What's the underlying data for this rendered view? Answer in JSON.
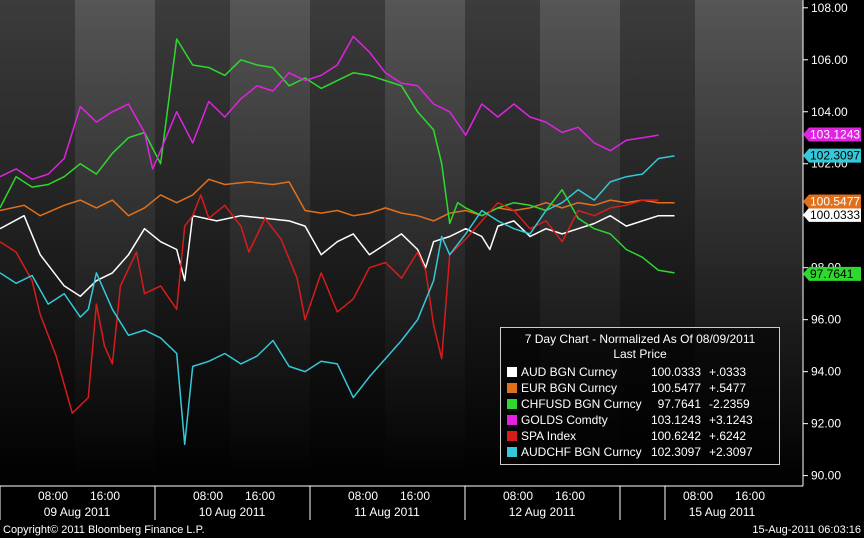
{
  "chart_data": {
    "type": "line",
    "title": "7 Day Chart - Normalized As Of 08/09/2011",
    "subtitle": "Last Price",
    "xlabel": "",
    "ylabel": "",
    "ylim": [
      89.6,
      108.3
    ],
    "y_ticks": [
      "108.00",
      "106.00",
      "104.00",
      "102.00",
      "100.00",
      "98.00",
      "96.00",
      "94.00",
      "92.00",
      "90.00"
    ],
    "grid": false,
    "legend_position": "bottom-right",
    "x_time_labels": [
      "08:00",
      "16:00",
      "08:00",
      "16:00",
      "08:00",
      "16:00",
      "08:00",
      "16:00",
      "08:00",
      "16:00"
    ],
    "x_day_labels": [
      "09 Aug 2011",
      "10 Aug 2011",
      "11 Aug 2011",
      "12 Aug 2011",
      "15 Aug 2011"
    ],
    "x_domain": [
      0,
      100
    ],
    "series": [
      {
        "name": "AUD BGN Curncy",
        "last": "100.0333",
        "change": "+.0333",
        "color": "#ffffff",
        "points": [
          [
            0,
            99.5
          ],
          [
            3,
            100.0
          ],
          [
            5,
            98.5
          ],
          [
            8,
            97.3
          ],
          [
            10,
            96.9
          ],
          [
            12,
            97.5
          ],
          [
            14,
            97.8
          ],
          [
            16,
            98.5
          ],
          [
            18,
            99.5
          ],
          [
            20,
            99.0
          ],
          [
            22,
            98.7
          ],
          [
            23,
            97.5
          ],
          [
            24,
            100.0
          ],
          [
            27,
            99.8
          ],
          [
            30,
            100.0
          ],
          [
            33,
            99.9
          ],
          [
            36,
            99.8
          ],
          [
            38,
            99.6
          ],
          [
            40,
            98.5
          ],
          [
            42,
            99.0
          ],
          [
            44,
            99.3
          ],
          [
            46,
            98.5
          ],
          [
            48,
            98.9
          ],
          [
            50,
            99.3
          ],
          [
            52,
            98.7
          ],
          [
            53,
            98.0
          ],
          [
            54,
            99.0
          ],
          [
            56,
            99.2
          ],
          [
            58,
            99.5
          ],
          [
            60,
            99.2
          ],
          [
            61,
            98.7
          ],
          [
            62,
            99.6
          ],
          [
            64,
            99.8
          ],
          [
            66,
            99.2
          ],
          [
            68,
            99.5
          ],
          [
            70,
            99.3
          ],
          [
            72,
            99.5
          ],
          [
            74,
            99.7
          ],
          [
            76,
            100.0
          ],
          [
            78,
            99.6
          ],
          [
            80,
            99.8
          ],
          [
            82,
            100.0
          ],
          [
            84,
            100.0
          ]
        ]
      },
      {
        "name": "EUR BGN Curncy",
        "last": "100.5477",
        "change": "+.5477",
        "color": "#e0701c",
        "points": [
          [
            0,
            100.2
          ],
          [
            3,
            100.4
          ],
          [
            5,
            100.0
          ],
          [
            8,
            100.4
          ],
          [
            10,
            100.6
          ],
          [
            12,
            100.3
          ],
          [
            14,
            100.6
          ],
          [
            16,
            100.0
          ],
          [
            18,
            100.3
          ],
          [
            20,
            100.8
          ],
          [
            22,
            100.5
          ],
          [
            24,
            100.8
          ],
          [
            26,
            101.4
          ],
          [
            28,
            101.2
          ],
          [
            31,
            101.3
          ],
          [
            34,
            101.2
          ],
          [
            36,
            101.3
          ],
          [
            38,
            100.2
          ],
          [
            40,
            100.1
          ],
          [
            42,
            100.2
          ],
          [
            44,
            100.0
          ],
          [
            46,
            100.1
          ],
          [
            48,
            100.3
          ],
          [
            50,
            100.1
          ],
          [
            52,
            100.0
          ],
          [
            54,
            99.8
          ],
          [
            56,
            100.1
          ],
          [
            58,
            100.2
          ],
          [
            60,
            100.0
          ],
          [
            62,
            100.3
          ],
          [
            64,
            100.2
          ],
          [
            66,
            100.3
          ],
          [
            68,
            100.5
          ],
          [
            70,
            100.3
          ],
          [
            72,
            100.5
          ],
          [
            74,
            100.4
          ],
          [
            76,
            100.6
          ],
          [
            78,
            100.5
          ],
          [
            80,
            100.6
          ],
          [
            82,
            100.5
          ],
          [
            84,
            100.5
          ]
        ]
      },
      {
        "name": "CHFUSD BGN Curncy",
        "last": "97.7641",
        "change": "-2.2359",
        "color": "#2fd82f",
        "points": [
          [
            0,
            100.3
          ],
          [
            2,
            101.5
          ],
          [
            4,
            101.1
          ],
          [
            6,
            101.2
          ],
          [
            8,
            101.5
          ],
          [
            10,
            102.0
          ],
          [
            12,
            101.6
          ],
          [
            14,
            102.4
          ],
          [
            16,
            103.0
          ],
          [
            18,
            103.2
          ],
          [
            20,
            102.0
          ],
          [
            22,
            106.8
          ],
          [
            24,
            105.8
          ],
          [
            26,
            105.7
          ],
          [
            28,
            105.4
          ],
          [
            30,
            106.0
          ],
          [
            32,
            105.8
          ],
          [
            34,
            105.7
          ],
          [
            36,
            105.0
          ],
          [
            38,
            105.3
          ],
          [
            40,
            104.9
          ],
          [
            42,
            105.2
          ],
          [
            44,
            105.5
          ],
          [
            46,
            105.4
          ],
          [
            48,
            105.2
          ],
          [
            50,
            105.0
          ],
          [
            52,
            104.0
          ],
          [
            54,
            103.3
          ],
          [
            55,
            102.0
          ],
          [
            56,
            99.7
          ],
          [
            57,
            100.5
          ],
          [
            58,
            100.3
          ],
          [
            60,
            100.0
          ],
          [
            62,
            100.3
          ],
          [
            64,
            100.5
          ],
          [
            66,
            100.4
          ],
          [
            68,
            100.2
          ],
          [
            70,
            101.0
          ],
          [
            72,
            99.9
          ],
          [
            74,
            99.5
          ],
          [
            76,
            99.3
          ],
          [
            78,
            98.7
          ],
          [
            80,
            98.4
          ],
          [
            82,
            97.9
          ],
          [
            84,
            97.8
          ]
        ]
      },
      {
        "name": "GOLDS Comdty",
        "last": "103.1243",
        "change": "+3.1243",
        "color": "#e023e0",
        "points": [
          [
            0,
            101.5
          ],
          [
            2,
            101.8
          ],
          [
            4,
            101.4
          ],
          [
            6,
            101.6
          ],
          [
            8,
            102.2
          ],
          [
            10,
            104.2
          ],
          [
            12,
            103.6
          ],
          [
            14,
            104.0
          ],
          [
            16,
            104.3
          ],
          [
            18,
            103.2
          ],
          [
            19,
            101.8
          ],
          [
            20,
            102.5
          ],
          [
            22,
            104.0
          ],
          [
            24,
            102.8
          ],
          [
            26,
            104.4
          ],
          [
            28,
            103.8
          ],
          [
            30,
            104.5
          ],
          [
            32,
            105.0
          ],
          [
            34,
            104.8
          ],
          [
            36,
            105.5
          ],
          [
            38,
            105.2
          ],
          [
            40,
            105.4
          ],
          [
            42,
            105.8
          ],
          [
            44,
            106.9
          ],
          [
            46,
            106.3
          ],
          [
            48,
            105.5
          ],
          [
            50,
            105.1
          ],
          [
            52,
            105.0
          ],
          [
            54,
            104.3
          ],
          [
            56,
            104.0
          ],
          [
            58,
            103.1
          ],
          [
            60,
            104.3
          ],
          [
            62,
            103.8
          ],
          [
            64,
            104.3
          ],
          [
            66,
            103.8
          ],
          [
            68,
            103.6
          ],
          [
            70,
            103.2
          ],
          [
            72,
            103.4
          ],
          [
            74,
            102.8
          ],
          [
            76,
            102.5
          ],
          [
            78,
            102.9
          ],
          [
            80,
            103.0
          ],
          [
            82,
            103.1
          ]
        ]
      },
      {
        "name": "SPA Index",
        "last": "100.6242",
        "change": "+.6242",
        "color": "#d81c1c",
        "points": [
          [
            0,
            99.0
          ],
          [
            2,
            98.6
          ],
          [
            4,
            97.5
          ],
          [
            5,
            96.2
          ],
          [
            7,
            94.6
          ],
          [
            9,
            92.4
          ],
          [
            11,
            93.0
          ],
          [
            12,
            96.6
          ],
          [
            13,
            95.0
          ],
          [
            14,
            94.3
          ],
          [
            15,
            97.3
          ],
          [
            17,
            98.6
          ],
          [
            18,
            97.0
          ],
          [
            20,
            97.3
          ],
          [
            22,
            96.4
          ],
          [
            23,
            99.6
          ],
          [
            24,
            100.0
          ],
          [
            25,
            100.8
          ],
          [
            26,
            99.9
          ],
          [
            28,
            100.4
          ],
          [
            30,
            99.6
          ],
          [
            31,
            98.6
          ],
          [
            33,
            99.9
          ],
          [
            35,
            99.1
          ],
          [
            37,
            97.6
          ],
          [
            38,
            96.0
          ],
          [
            40,
            97.8
          ],
          [
            42,
            96.3
          ],
          [
            44,
            96.8
          ],
          [
            46,
            98.0
          ],
          [
            48,
            98.2
          ],
          [
            50,
            97.6
          ],
          [
            52,
            98.6
          ],
          [
            53,
            97.9
          ],
          [
            54,
            95.8
          ],
          [
            55,
            94.5
          ],
          [
            56,
            98.5
          ],
          [
            58,
            99.1
          ],
          [
            60,
            99.8
          ],
          [
            62,
            100.5
          ],
          [
            64,
            100.2
          ],
          [
            66,
            99.5
          ],
          [
            68,
            99.8
          ],
          [
            70,
            99.0
          ],
          [
            72,
            100.2
          ],
          [
            74,
            100.0
          ],
          [
            76,
            100.3
          ],
          [
            78,
            100.4
          ],
          [
            80,
            100.6
          ],
          [
            82,
            100.6
          ]
        ]
      },
      {
        "name": "AUDCHF BGN Curncy",
        "last": "102.3097",
        "change": "+2.3097",
        "color": "#35c8d8",
        "points": [
          [
            0,
            97.8
          ],
          [
            2,
            97.4
          ],
          [
            4,
            97.7
          ],
          [
            6,
            96.6
          ],
          [
            8,
            97.0
          ],
          [
            10,
            96.1
          ],
          [
            11,
            96.4
          ],
          [
            12,
            97.8
          ],
          [
            14,
            96.4
          ],
          [
            16,
            95.4
          ],
          [
            18,
            95.6
          ],
          [
            20,
            95.3
          ],
          [
            22,
            94.7
          ],
          [
            23,
            91.2
          ],
          [
            24,
            94.2
          ],
          [
            26,
            94.4
          ],
          [
            28,
            94.7
          ],
          [
            30,
            94.3
          ],
          [
            32,
            94.6
          ],
          [
            34,
            95.2
          ],
          [
            36,
            94.2
          ],
          [
            38,
            94.0
          ],
          [
            40,
            94.4
          ],
          [
            42,
            94.3
          ],
          [
            44,
            93.0
          ],
          [
            46,
            93.8
          ],
          [
            48,
            94.5
          ],
          [
            50,
            95.2
          ],
          [
            52,
            96.0
          ],
          [
            54,
            97.5
          ],
          [
            55,
            99.2
          ],
          [
            56,
            98.5
          ],
          [
            58,
            99.3
          ],
          [
            60,
            100.2
          ],
          [
            62,
            99.8
          ],
          [
            64,
            99.5
          ],
          [
            66,
            99.3
          ],
          [
            68,
            100.2
          ],
          [
            70,
            100.5
          ],
          [
            72,
            101.0
          ],
          [
            74,
            100.6
          ],
          [
            76,
            101.3
          ],
          [
            78,
            101.5
          ],
          [
            80,
            101.6
          ],
          [
            82,
            102.2
          ],
          [
            84,
            102.3
          ]
        ]
      }
    ]
  },
  "footer": {
    "copyright": "Copyright© 2011 Bloomberg Finance L.P.",
    "timestamp": "15-Aug-2011 06:03:16"
  }
}
